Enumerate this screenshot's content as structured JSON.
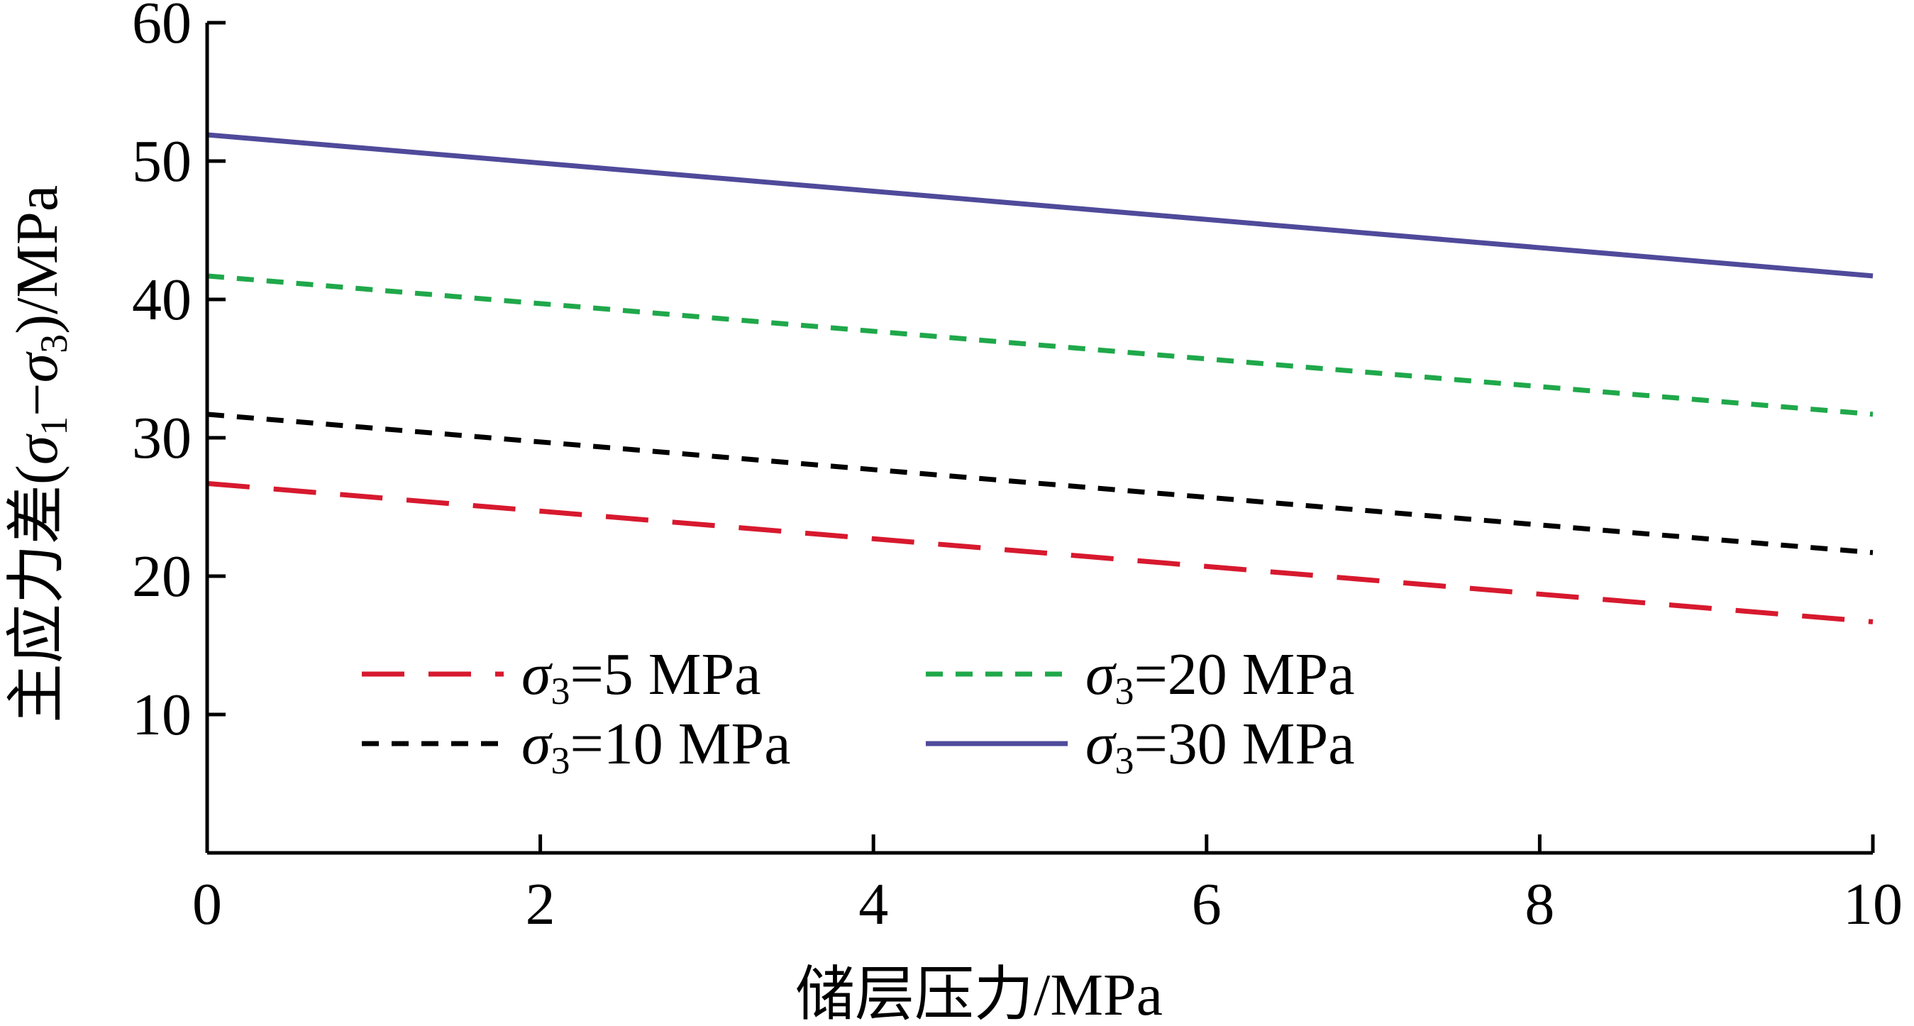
{
  "chart_data": {
    "type": "line",
    "title": "",
    "xlabel": "储层压力/MPa",
    "ylabel": "主应力差(σ1−σ3)/MPa",
    "ylabel_parts": {
      "prefix": "主应力差(",
      "sym1": "σ",
      "sub1": "1",
      "minus": "−",
      "sym2": "σ",
      "sub2": "3",
      "suffix": ")/MPa"
    },
    "xlim": [
      0,
      10
    ],
    "ylim": [
      0,
      60
    ],
    "xticks": [
      0,
      2,
      4,
      6,
      8,
      10
    ],
    "yticks": [
      10,
      20,
      30,
      40,
      50,
      60
    ],
    "grid": false,
    "legend_position": "bottom-left, two columns",
    "x": [
      0,
      10
    ],
    "series": [
      {
        "name": "σ3=5 MPa",
        "sym": "σ",
        "sub": "3",
        "rest": "=5 MPa",
        "values": [
          26.7,
          16.7
        ],
        "color": "#d7192e",
        "dash": "long-dash"
      },
      {
        "name": "σ3=10 MPa",
        "sym": "σ",
        "sub": "3",
        "rest": "=10 MPa",
        "values": [
          31.7,
          21.7
        ],
        "color": "#000000",
        "dash": "short-dash"
      },
      {
        "name": "σ3=20 MPa",
        "sym": "σ",
        "sub": "3",
        "rest": "=20 MPa",
        "values": [
          41.7,
          31.7
        ],
        "color": "#1fa84a",
        "dash": "short-dash"
      },
      {
        "name": "σ3=30 MPa",
        "sym": "σ",
        "sub": "3",
        "rest": "=30 MPa",
        "values": [
          51.9,
          41.7
        ],
        "color": "#4f4a9a",
        "dash": "solid"
      }
    ]
  }
}
